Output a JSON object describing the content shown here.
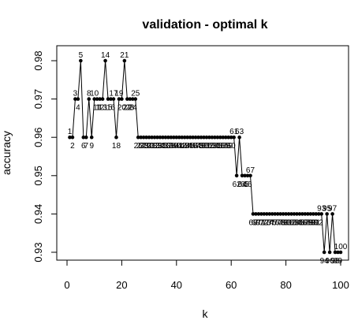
{
  "chart_data": {
    "type": "line",
    "title": "validation - optimal k",
    "xlabel": "k",
    "ylabel": "accuracy",
    "xlim": [
      0,
      100
    ],
    "ylim": [
      0.93,
      0.98
    ],
    "xticks": [
      0,
      20,
      40,
      60,
      80,
      100
    ],
    "yticks": [
      0.93,
      0.94,
      0.95,
      0.96,
      0.97,
      0.98
    ],
    "grid": false,
    "legend": "none",
    "point_labels": "k index printed next to each point",
    "series": [
      {
        "x": [
          1,
          2,
          3,
          4,
          5,
          6,
          7,
          8,
          9,
          10,
          11,
          12,
          13,
          14,
          15,
          16,
          17,
          18,
          19,
          20,
          21,
          22,
          23,
          24,
          25,
          26,
          27,
          28,
          29,
          30,
          31,
          32,
          33,
          34,
          35,
          36,
          37,
          38,
          39,
          40,
          41,
          42,
          43,
          44,
          45,
          46,
          47,
          48,
          49,
          50,
          51,
          52,
          53,
          54,
          55,
          56,
          57,
          58,
          59,
          60,
          61,
          62,
          63,
          64,
          65,
          66,
          67,
          68,
          69,
          70,
          71,
          72,
          73,
          74,
          75,
          76,
          77,
          78,
          79,
          80,
          81,
          82,
          83,
          84,
          85,
          86,
          87,
          88,
          89,
          90,
          91,
          92,
          93,
          94,
          95,
          96,
          97,
          98,
          99,
          100
        ],
        "y": [
          0.96,
          0.96,
          0.97,
          0.97,
          0.98,
          0.96,
          0.96,
          0.97,
          0.96,
          0.97,
          0.97,
          0.97,
          0.97,
          0.98,
          0.97,
          0.97,
          0.97,
          0.96,
          0.97,
          0.97,
          0.98,
          0.97,
          0.97,
          0.97,
          0.97,
          0.96,
          0.96,
          0.96,
          0.96,
          0.96,
          0.96,
          0.96,
          0.96,
          0.96,
          0.96,
          0.96,
          0.96,
          0.96,
          0.96,
          0.96,
          0.96,
          0.96,
          0.96,
          0.96,
          0.96,
          0.96,
          0.96,
          0.96,
          0.96,
          0.96,
          0.96,
          0.96,
          0.96,
          0.96,
          0.96,
          0.96,
          0.96,
          0.96,
          0.96,
          0.96,
          0.96,
          0.95,
          0.96,
          0.95,
          0.95,
          0.95,
          0.95,
          0.94,
          0.94,
          0.94,
          0.94,
          0.94,
          0.94,
          0.94,
          0.94,
          0.94,
          0.94,
          0.94,
          0.94,
          0.94,
          0.94,
          0.94,
          0.94,
          0.94,
          0.94,
          0.94,
          0.94,
          0.94,
          0.94,
          0.94,
          0.94,
          0.94,
          0.94,
          0.93,
          0.94,
          0.93,
          0.94,
          0.93,
          0.93,
          0.93
        ]
      }
    ]
  }
}
